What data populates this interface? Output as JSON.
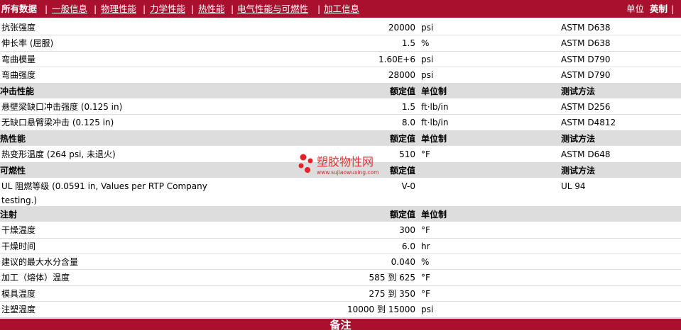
{
  "nav": {
    "items": [
      "所有数据",
      "一般信息",
      "物理性能",
      "力学性能",
      "热性能",
      "电气性能与可燃性",
      "加工信息"
    ],
    "separator": "|",
    "unit_label": "单位",
    "unit_value": "英制"
  },
  "sections": [
    {
      "rows": [
        {
          "property": "抗张强度",
          "value": "20000",
          "unit": "psi",
          "method": "ASTM D638"
        },
        {
          "property": "伸长率 (屈服)",
          "value": "1.5",
          "unit": "%",
          "method": "ASTM D638"
        },
        {
          "property": "弯曲模量",
          "value": "1.60E+6",
          "unit": "psi",
          "method": "ASTM D790"
        },
        {
          "property": "弯曲强度",
          "value": "28000",
          "unit": "psi",
          "method": "ASTM D790"
        }
      ]
    },
    {
      "title": "冲击性能",
      "headers": {
        "value": "额定值",
        "unit": "单位制",
        "method": "测试方法"
      },
      "rows": [
        {
          "property": "悬壁梁缺口冲击强度 (0.125 in)",
          "value": "1.5",
          "unit": "ft·lb/in",
          "method": "ASTM D256"
        },
        {
          "property": "无缺口悬臂梁冲击 (0.125 in)",
          "value": "8.0",
          "unit": "ft·lb/in",
          "method": "ASTM D4812"
        }
      ]
    },
    {
      "title": "热性能",
      "headers": {
        "value": "额定值",
        "unit": "单位制",
        "method": "测试方法"
      },
      "rows": [
        {
          "property": "热变形温度 (264 psi, 未退火)",
          "value": "510",
          "unit": "°F",
          "method": "ASTM D648"
        }
      ]
    },
    {
      "title": "可燃性",
      "headers": {
        "value": "额定值",
        "method": "测试方法"
      },
      "rows": [
        {
          "property": "UL 阻燃等级 (0.0591 in, Values per RTP Company testing.)",
          "value": "V-0",
          "method": "UL 94"
        }
      ]
    },
    {
      "title": "注射",
      "headers": {
        "value": "额定值",
        "unit": "单位制"
      },
      "rows": [
        {
          "property": "干燥温度",
          "value": "300",
          "unit": "°F"
        },
        {
          "property": "干燥时间",
          "value": "6.0",
          "unit": "hr"
        },
        {
          "property": "建议的最大水分含量",
          "value": "0.040",
          "unit": "%"
        },
        {
          "property": "加工（熔体）温度",
          "value": "585 到 625",
          "unit": "°F"
        },
        {
          "property": "模具温度",
          "value": "275 到 350",
          "unit": "°F"
        },
        {
          "property": "注塑温度",
          "value": "10000 到 15000",
          "unit": "psi"
        }
      ]
    }
  ],
  "footer": "备注",
  "watermark": {
    "name": "塑胶物性网",
    "url": "www.sujiaowuxing.com"
  }
}
